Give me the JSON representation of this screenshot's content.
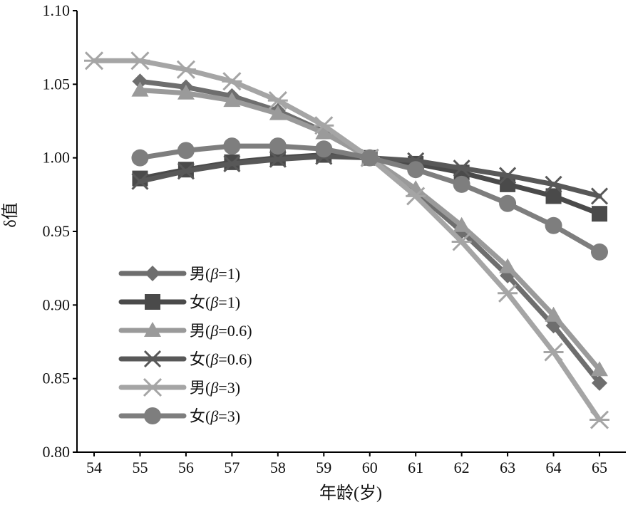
{
  "chart_data": {
    "type": "line",
    "title": "",
    "xlabel": "年龄(岁)",
    "ylabel": "δ值",
    "xlim": [
      54,
      65
    ],
    "ylim": [
      0.8,
      1.1
    ],
    "x_ticks": [
      54,
      55,
      56,
      57,
      58,
      59,
      60,
      61,
      62,
      63,
      64,
      65
    ],
    "y_ticks": [
      0.8,
      0.85,
      0.9,
      0.95,
      1.0,
      1.05,
      1.1
    ],
    "y_tick_labels": [
      "0.80",
      "0.85",
      "0.90",
      "0.95",
      "1.00",
      "1.05",
      "1.10"
    ],
    "legend_position": "bottom-left",
    "grid": false,
    "series": [
      {
        "name": "男(β=1)",
        "legend_prefix": "男(",
        "legend_beta": "β",
        "legend_suffix": "=1)",
        "marker": "diamond",
        "color": "#6e6e6e",
        "x": [
          55,
          56,
          57,
          58,
          59,
          60,
          61,
          62,
          63,
          64,
          65
        ],
        "values": [
          1.052,
          1.048,
          1.042,
          1.032,
          1.018,
          1.0,
          0.977,
          0.95,
          0.92,
          0.886,
          0.847
        ]
      },
      {
        "name": "女(β=1)",
        "legend_prefix": "女(",
        "legend_beta": "β",
        "legend_suffix": "=1)",
        "marker": "square",
        "color": "#4a4a4a",
        "x": [
          55,
          56,
          57,
          58,
          59,
          60,
          61,
          62,
          63,
          64,
          65
        ],
        "values": [
          0.986,
          0.992,
          0.997,
          1.0,
          1.002,
          1.0,
          0.996,
          0.99,
          0.982,
          0.974,
          0.962
        ]
      },
      {
        "name": "男(β=0.6)",
        "legend_prefix": "男(",
        "legend_beta": "β",
        "legend_suffix": "=0.6)",
        "marker": "triangle",
        "color": "#9a9a9a",
        "x": [
          55,
          56,
          57,
          58,
          59,
          60,
          61,
          62,
          63,
          64,
          65
        ],
        "values": [
          1.046,
          1.044,
          1.039,
          1.03,
          1.017,
          1.0,
          0.979,
          0.954,
          0.926,
          0.893,
          0.856
        ]
      },
      {
        "name": "女(β=0.6)",
        "legend_prefix": "女(",
        "legend_beta": "β",
        "legend_suffix": "=0.6)",
        "marker": "x",
        "color": "#585858",
        "x": [
          55,
          56,
          57,
          58,
          59,
          60,
          61,
          62,
          63,
          64,
          65
        ],
        "values": [
          0.984,
          0.991,
          0.996,
          0.999,
          1.001,
          1.0,
          0.998,
          0.993,
          0.988,
          0.982,
          0.974
        ]
      },
      {
        "name": "男(β=3)",
        "legend_prefix": "男(",
        "legend_beta": "β",
        "legend_suffix": "=3)",
        "marker": "asterisk",
        "color": "#a5a5a5",
        "x": [
          54,
          55,
          56,
          57,
          58,
          59,
          60,
          61,
          62,
          63,
          64,
          65
        ],
        "values": [
          1.066,
          1.066,
          1.06,
          1.052,
          1.039,
          1.022,
          1.0,
          0.974,
          0.943,
          0.908,
          0.868,
          0.822
        ]
      },
      {
        "name": "女(β=3)",
        "legend_prefix": "女(",
        "legend_beta": "β",
        "legend_suffix": "=3)",
        "marker": "circle",
        "color": "#7e7e7e",
        "x": [
          55,
          56,
          57,
          58,
          59,
          60,
          61,
          62,
          63,
          64,
          65
        ],
        "values": [
          1.0,
          1.005,
          1.008,
          1.008,
          1.006,
          1.0,
          0.992,
          0.982,
          0.969,
          0.954,
          0.936
        ]
      }
    ]
  }
}
